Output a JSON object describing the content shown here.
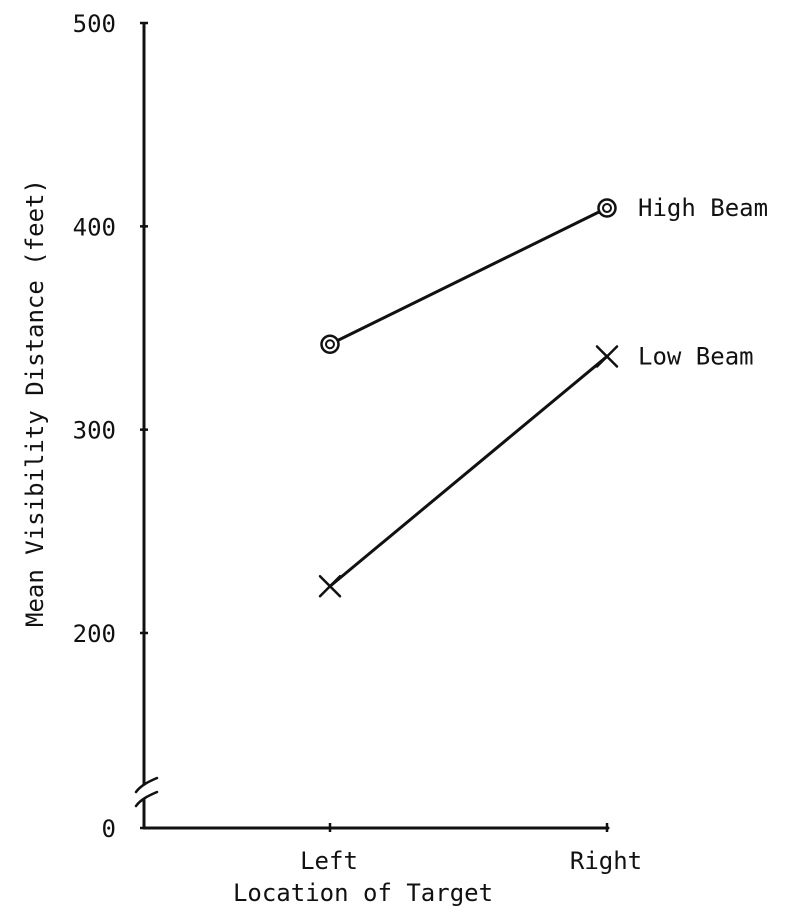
{
  "chart_data": {
    "type": "line",
    "categories": [
      "Left",
      "Right"
    ],
    "xlabel": "Location of Target",
    "ylabel": "Mean Visibility Distance (feet)",
    "y_ticks": [
      0,
      200,
      300,
      400,
      500
    ],
    "ylim": [
      0,
      500
    ],
    "axis_break": true,
    "grid": false,
    "legend": "labels at end of lines",
    "series": [
      {
        "name": "High Beam",
        "marker": "circle",
        "values": [
          342,
          409
        ]
      },
      {
        "name": "Low Beam",
        "marker": "x",
        "values": [
          223,
          336
        ]
      }
    ]
  },
  "colors": {
    "ink": "#111111",
    "background": "#ffffff"
  }
}
